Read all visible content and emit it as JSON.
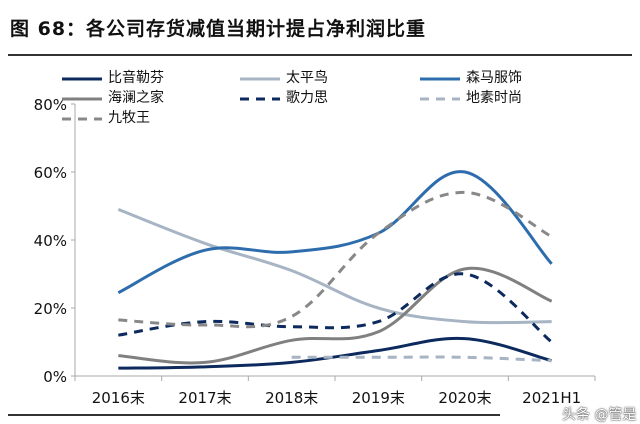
{
  "title": "图 68：各公司存货减值当期计提占净利润比重",
  "watermark": "头条 @管是",
  "chart_data": {
    "type": "line",
    "title": "图 68：各公司存货减值当期计提占净利润比重",
    "categories": [
      "2016末",
      "2017末",
      "2018末",
      "2019末",
      "2020末",
      "2021H1"
    ],
    "ylim": [
      0,
      80
    ],
    "yticks": [
      "0%",
      "20%",
      "40%",
      "60%",
      "80%"
    ],
    "grid": false,
    "legend": "top",
    "series": [
      {
        "name": "比音勒芬",
        "color": "#0d2a5e",
        "dash": false,
        "values": [
          2.3,
          2.7,
          4,
          7.5,
          11,
          4.5
        ]
      },
      {
        "name": "太平鸟",
        "color": "#a6b4c4",
        "dash": false,
        "values": [
          49,
          39,
          31,
          20,
          16,
          16
        ]
      },
      {
        "name": "森马服饰",
        "color": "#2e6dad",
        "dash": false,
        "values": [
          24.5,
          37,
          36.5,
          42,
          60,
          33
        ]
      },
      {
        "name": "海澜之家",
        "color": "#808080",
        "dash": false,
        "values": [
          6,
          4,
          10.5,
          13,
          31.5,
          22
        ]
      },
      {
        "name": "歌力思",
        "color": "#0d2a5e",
        "dash": true,
        "values": [
          12,
          16,
          14.5,
          16,
          30,
          10
        ]
      },
      {
        "name": "地素时尚",
        "color": "#a6b4c4",
        "dash": true,
        "values": [
          null,
          null,
          5.5,
          5.5,
          5.5,
          4.5
        ]
      },
      {
        "name": "九牧王",
        "color": "#888888",
        "dash": true,
        "values": [
          16.5,
          15,
          17.5,
          42,
          54,
          41
        ]
      }
    ]
  }
}
